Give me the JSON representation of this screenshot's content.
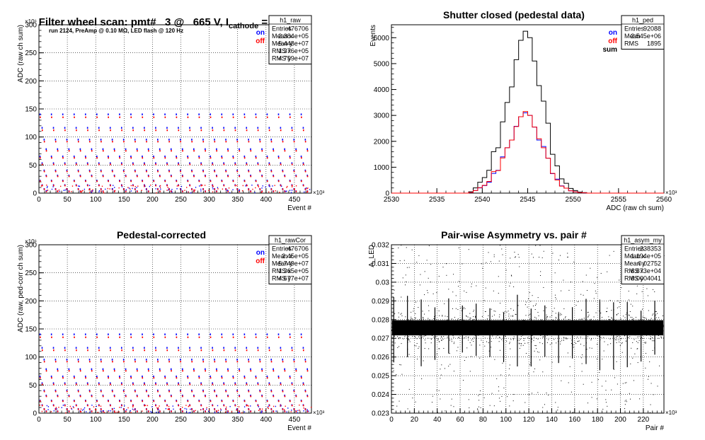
{
  "page_title": {
    "main": "Filter wheel scan: pmt#   3 @   665 V, I",
    "sub": "cathode",
    "tail": " = 10.0 nA"
  },
  "colors": {
    "on": "#0000ff",
    "off": "#ff0000",
    "sum": "#000000",
    "frame": "#000000",
    "grid": "#000000"
  },
  "chart_data": [
    {
      "id": "raw",
      "type": "scatter",
      "title": "",
      "ylabel": "ADC (raw ch sum)",
      "xlabel": "Event #",
      "xlim": [
        0,
        480
      ],
      "ylim": [
        0,
        300
      ],
      "x_exponent": "×10³",
      "y_exponent": "×10⁶",
      "x_ticks": [
        0,
        50,
        100,
        150,
        200,
        250,
        300,
        350,
        400,
        450
      ],
      "y_ticks": [
        0,
        50,
        100,
        150,
        200,
        250,
        300
      ],
      "annotation": "run 2124, PreAmp @ 0.10 MΩ, LED flash @  120 Hz",
      "legend": [
        {
          "label": "on",
          "color": "#0000ff"
        },
        {
          "label": "off",
          "color": "#ff0000"
        }
      ],
      "stats": {
        "name": "h1_raw",
        "rows": [
          [
            "Entries",
            "476706"
          ],
          [
            "Mean x",
            "2.384e+05"
          ],
          [
            "Mean y",
            "5.448e+07"
          ],
          [
            "RMS x",
            "1.376e+05"
          ],
          [
            "RMS y",
            "4.759e+07"
          ]
        ]
      },
      "levels": [
        140,
        116,
        95,
        78,
        65,
        53,
        40,
        31,
        22,
        14,
        7,
        3
      ],
      "block_period": 20
    },
    {
      "id": "ped",
      "type": "bar",
      "title": "Shutter closed (pedestal data)",
      "ylabel": "Events",
      "xlabel": "ADC (raw ch sum)",
      "xlim": [
        2530,
        2560
      ],
      "ylim": [
        0,
        6500
      ],
      "x_exponent": "×10³",
      "x_ticks": [
        2530,
        2535,
        2540,
        2545,
        2550,
        2555,
        2560
      ],
      "y_ticks": [
        0,
        1000,
        2000,
        3000,
        4000,
        5000,
        6000
      ],
      "legend": [
        {
          "label": "on",
          "color": "#0000ff"
        },
        {
          "label": "off",
          "color": "#ff0000"
        },
        {
          "label": "sum",
          "color": "#000000"
        }
      ],
      "stats": {
        "name": "h1_ped",
        "rows": [
          [
            "Entries",
            "92088"
          ],
          [
            "Mean",
            "2.545e+06"
          ],
          [
            "RMS",
            "1895"
          ]
        ]
      },
      "bin_edges": [
        2538.5,
        2539,
        2539.5,
        2540,
        2540.5,
        2541,
        2541.5,
        2542,
        2542.5,
        2543,
        2543.5,
        2544,
        2544.5,
        2545,
        2545.5,
        2546,
        2546.5,
        2547,
        2547.5,
        2548,
        2548.5,
        2549,
        2549.5,
        2550,
        2550.5,
        2551,
        2551.5
      ],
      "series": [
        {
          "name": "sum",
          "values": [
            50,
            200,
            420,
            600,
            880,
            1600,
            1750,
            2750,
            3500,
            4100,
            5150,
            5900,
            6250,
            6000,
            5100,
            4150,
            3550,
            2700,
            1500,
            1050,
            550,
            380,
            180,
            100,
            40,
            20
          ]
        },
        {
          "name": "on",
          "values": [
            20,
            100,
            200,
            290,
            420,
            760,
            880,
            1400,
            1750,
            2050,
            2580,
            2950,
            3100,
            3000,
            2550,
            2050,
            1800,
            1350,
            750,
            540,
            280,
            190,
            90,
            50,
            20,
            10
          ]
        },
        {
          "name": "off",
          "values": [
            25,
            100,
            210,
            300,
            450,
            830,
            870,
            1360,
            1750,
            2050,
            2570,
            2950,
            3150,
            3000,
            2550,
            2100,
            1750,
            1350,
            760,
            510,
            270,
            190,
            90,
            50,
            20,
            10
          ]
        }
      ]
    },
    {
      "id": "rawCor",
      "type": "scatter",
      "title": "Pedestal-corrected",
      "ylabel": "ADC (raw, ped-corr ch sum)",
      "xlabel": "Event #",
      "xlim": [
        0,
        480
      ],
      "ylim": [
        0,
        300
      ],
      "x_exponent": "×10³",
      "y_exponent": "×10⁶",
      "x_ticks": [
        0,
        50,
        100,
        150,
        200,
        250,
        300,
        350,
        400,
        450
      ],
      "y_ticks": [
        0,
        50,
        100,
        150,
        200,
        250,
        300
      ],
      "legend": [
        {
          "label": "on",
          "color": "#0000ff"
        },
        {
          "label": "off",
          "color": "#ff0000"
        }
      ],
      "stats": {
        "name": "h1_rawCor",
        "rows": [
          [
            "Entries",
            "476706"
          ],
          [
            "Mean x",
            "2.45e+05"
          ],
          [
            "Mean y",
            "5.749e+07"
          ],
          [
            "RMS x",
            "1.365e+05"
          ],
          [
            "RMS y",
            "4.677e+07"
          ]
        ]
      },
      "levels": [
        140,
        116,
        95,
        78,
        65,
        53,
        40,
        31,
        22,
        14,
        7,
        3
      ],
      "block_period": 20
    },
    {
      "id": "asym",
      "type": "scatter",
      "title": "Pair-wise Asymmetry vs. pair #",
      "ylabel": "A_LED",
      "xlabel": "Pair #",
      "xlim": [
        0,
        238
      ],
      "ylim": [
        0.023,
        0.032
      ],
      "x_exponent": "×10³",
      "x_ticks": [
        0,
        20,
        40,
        60,
        80,
        100,
        120,
        140,
        160,
        180,
        200,
        220
      ],
      "y_ticks": [
        0.023,
        0.024,
        0.025,
        0.026,
        0.027,
        0.028,
        0.029,
        0.03,
        0.031,
        0.032
      ],
      "stats": {
        "name": "h1_asym_my",
        "rows": [
          [
            "Entries",
            "238353"
          ],
          [
            "Mean x",
            "1.194e+05"
          ],
          [
            "Mean y",
            "0.02752"
          ],
          [
            "RMS x",
            "6.873e+04"
          ],
          [
            "RMS y",
            "0.0004041"
          ]
        ]
      },
      "band_center": 0.02752,
      "band_rms": 0.0004041,
      "spike_period": 12
    }
  ]
}
